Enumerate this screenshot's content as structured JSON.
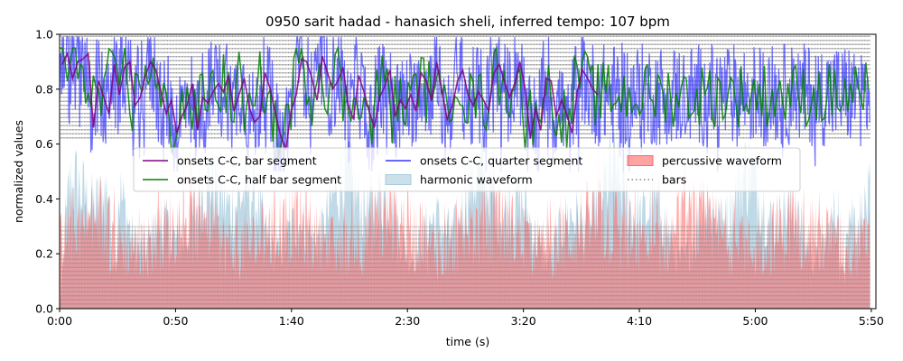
{
  "chart_data": {
    "type": "line",
    "title": "0950 sarit hadad - hanasich sheli, inferred tempo: 107 bpm",
    "xlabel": "time (s)",
    "ylabel": "normalized values",
    "xlim": [
      0,
      352
    ],
    "ylim": [
      0,
      1.0
    ],
    "x_ticks": [
      0,
      50,
      100,
      150,
      200,
      250,
      300,
      350
    ],
    "x_tick_labels": [
      "0:00",
      "0:50",
      "1:40",
      "2:30",
      "3:20",
      "4:10",
      "5:00",
      "5:50"
    ],
    "y_ticks": [
      0.0,
      0.2,
      0.4,
      0.6,
      0.8,
      1.0
    ],
    "y_tick_labels": [
      "0.0",
      "0.2",
      "0.4",
      "0.6",
      "0.8",
      "1.0"
    ],
    "tempo_bpm": 107,
    "duration_s": 349.5,
    "bar_line_ymin": 0.62,
    "legend_placement": "center",
    "grid": false,
    "series": [
      {
        "name": "onsets C-C, bar segment",
        "color": "#800080",
        "values": [
          0.89,
          0.93,
          0.84,
          0.9,
          0.91,
          0.93,
          0.66,
          0.83,
          0.77,
          0.71,
          0.89,
          0.78,
          0.88,
          0.9,
          0.74,
          0.77,
          0.85,
          0.9,
          0.87,
          0.79,
          0.71,
          0.76,
          0.64,
          0.7,
          0.74,
          0.82,
          0.65,
          0.77,
          0.75,
          0.79,
          0.82,
          0.79,
          0.85,
          0.72,
          0.78,
          0.84,
          0.73,
          0.68,
          0.7,
          0.86,
          0.8,
          0.71,
          0.63,
          0.58,
          0.72,
          0.78,
          0.91,
          0.9,
          0.84,
          0.76,
          0.92,
          0.86,
          0.8,
          0.83,
          0.88,
          0.74,
          0.69,
          0.85,
          0.79,
          0.72,
          0.66,
          0.77,
          0.81,
          0.87,
          0.7,
          0.76,
          0.73,
          0.78,
          0.72,
          0.86,
          0.83,
          0.76,
          0.9,
          0.79,
          0.69,
          0.74,
          0.83,
          0.87,
          0.78,
          0.74,
          0.79,
          0.76,
          0.72,
          0.86,
          0.89,
          0.83,
          0.77,
          0.82,
          0.9,
          0.8,
          0.62,
          0.73,
          0.65,
          0.84,
          0.83,
          0.7,
          0.76,
          0.71,
          0.64,
          0.79,
          0.87,
          0.84,
          0.8,
          0.78
        ],
        "style": "solid"
      },
      {
        "name": "onsets C-C, half bar segment",
        "color": "#008000",
        "style": "solid"
      },
      {
        "name": "onsets C-C, quarter segment",
        "color": "#3333ff",
        "style": "solid"
      },
      {
        "name": "harmonic waveform",
        "color": "#aaccdd",
        "style": "area"
      },
      {
        "name": "percussive waveform",
        "color": "#ff6666",
        "style": "area"
      },
      {
        "name": "bars",
        "color": "#808080",
        "style": "dotted vertical lines"
      }
    ]
  },
  "colors": {
    "bar_segment": "#800080",
    "half_bar_segment": "#008000",
    "quarter_segment": "#3333ff",
    "harmonic": "#aaccdd",
    "percussive": "#ff6666",
    "bars": "#808080"
  }
}
